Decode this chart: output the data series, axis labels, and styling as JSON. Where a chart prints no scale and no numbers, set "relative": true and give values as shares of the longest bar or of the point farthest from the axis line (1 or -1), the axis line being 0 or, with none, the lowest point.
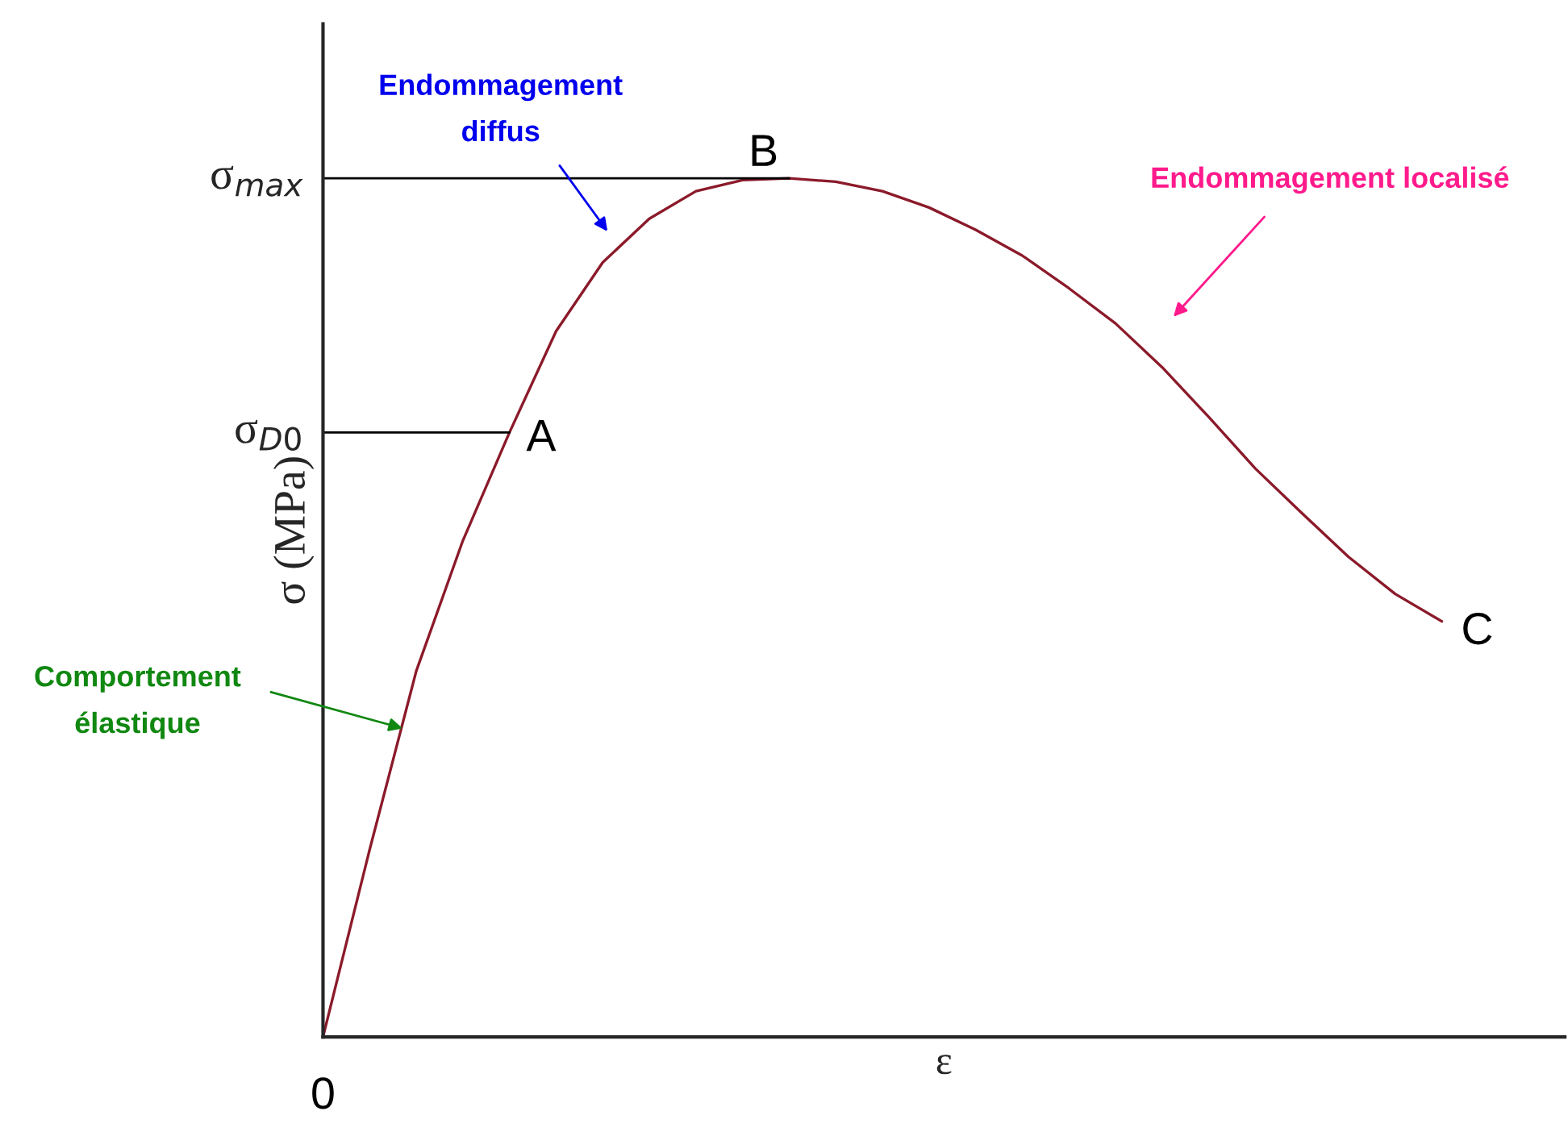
{
  "chart_data": {
    "type": "line",
    "relative": true,
    "xlabel": "ε",
    "ylabel": "σ (MPa)",
    "categories": [
      null,
      null,
      null,
      null,
      null,
      null,
      null,
      null,
      null,
      null,
      null,
      null,
      null,
      null,
      null,
      null,
      null,
      null,
      null,
      null,
      null,
      null,
      null,
      null,
      null
    ],
    "series": [
      {
        "color": "#8b1a2a",
        "values": [
          0,
          0.218,
          0.426,
          0.578,
          0.704,
          0.822,
          0.902,
          0.953,
          0.985,
          0.998,
          1.0,
          0.996,
          0.985,
          0.966,
          0.94,
          0.91,
          0.872,
          0.831,
          0.78,
          0.722,
          0.662,
          0.61,
          0.559,
          0.516,
          0.484
        ]
      }
    ],
    "ref_lines": [
      {
        "axis": "y",
        "value": 1.0,
        "label": "σ$_{max}$",
        "color": "#000000"
      },
      {
        "axis": "y",
        "value": 0.704,
        "label": "σ$_{D0}$",
        "color": "#000000"
      }
    ],
    "annotations": [
      "Endommagement\ndiffus",
      "Endommagement localisé",
      "Comportement\nélastique",
      "A",
      "B",
      "C",
      "0"
    ],
    "marker": "none",
    "line_style": "solid"
  }
}
